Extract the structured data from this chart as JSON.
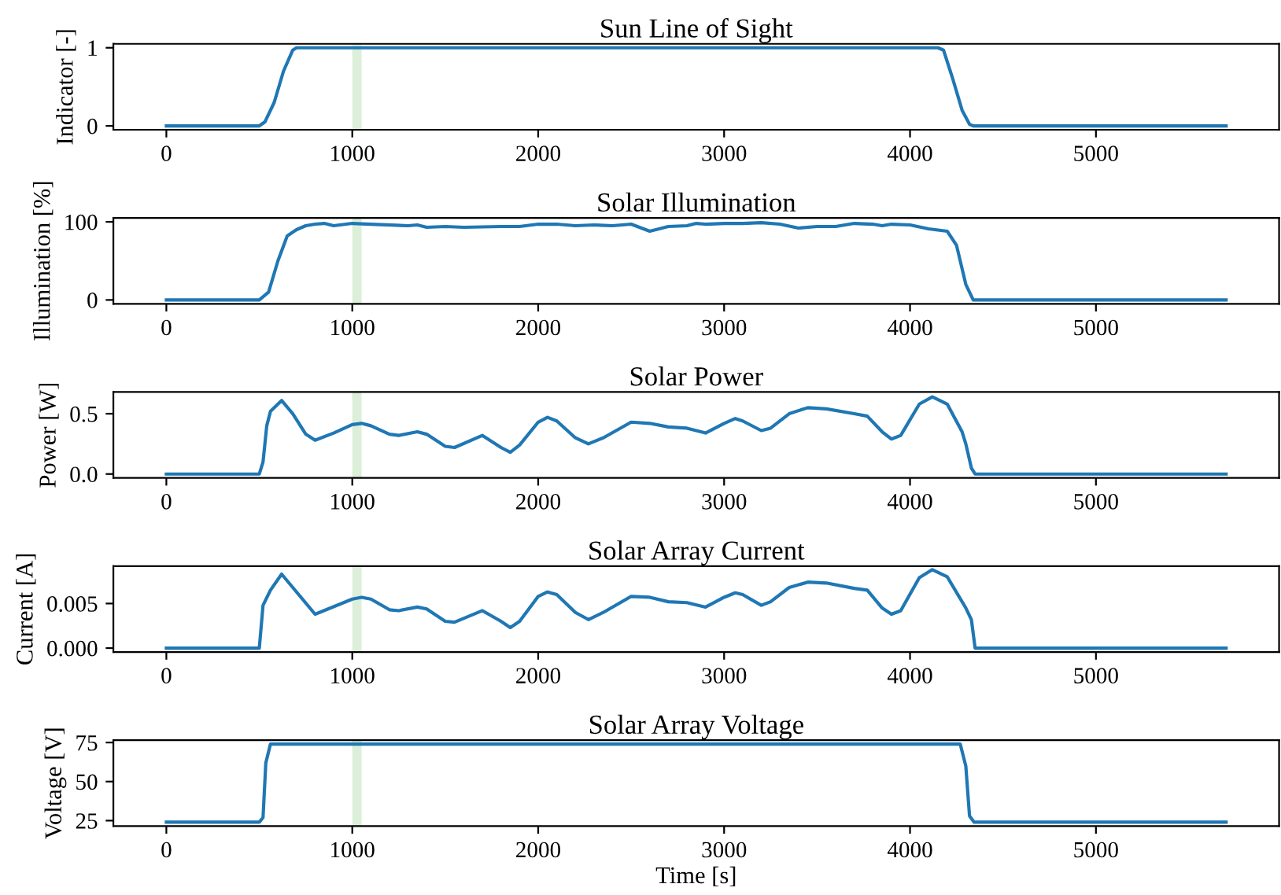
{
  "chart_data": [
    {
      "type": "line",
      "title": "Sun Line of Sight",
      "ylabel": "Indicator [-]",
      "xlim": [
        -285,
        5985
      ],
      "xticks": [
        0,
        1000,
        2000,
        3000,
        4000,
        5000
      ],
      "ylim": [
        -0.05,
        1.05
      ],
      "yticks": [
        0,
        1
      ],
      "grid": false,
      "bands": [
        {
          "axis": "x",
          "from": 1000,
          "to": 1050,
          "color": "#dcefd9"
        }
      ],
      "series": [
        {
          "color": "#1f77b4",
          "x": [
            0,
            500,
            530,
            580,
            630,
            680,
            700,
            4150,
            4180,
            4230,
            4280,
            4320,
            4340,
            5700
          ],
          "values": [
            0,
            0,
            0.05,
            0.3,
            0.7,
            0.97,
            1,
            1,
            0.97,
            0.6,
            0.2,
            0.02,
            0,
            0
          ]
        }
      ]
    },
    {
      "type": "line",
      "title": "Solar Illumination",
      "ylabel": "Illumination [%]",
      "xlim": [
        -285,
        5985
      ],
      "xticks": [
        0,
        1000,
        2000,
        3000,
        4000,
        5000
      ],
      "ylim": [
        -5,
        105
      ],
      "yticks": [
        0,
        100
      ],
      "grid": false,
      "bands": [
        {
          "axis": "x",
          "from": 1000,
          "to": 1050,
          "color": "#dcefd9"
        }
      ],
      "series": [
        {
          "color": "#1f77b4",
          "x": [
            0,
            500,
            550,
            600,
            650,
            700,
            750,
            800,
            850,
            900,
            1000,
            1100,
            1300,
            1350,
            1400,
            1500,
            1600,
            1800,
            1900,
            2000,
            2100,
            2200,
            2300,
            2400,
            2500,
            2600,
            2700,
            2800,
            2850,
            2900,
            3000,
            3100,
            3200,
            3300,
            3400,
            3500,
            3600,
            3700,
            3800,
            3850,
            3900,
            4000,
            4100,
            4200,
            4250,
            4300,
            4340,
            5700
          ],
          "values": [
            0,
            0,
            10,
            50,
            82,
            90,
            95,
            97,
            98,
            95,
            98,
            97,
            95,
            96,
            93,
            94,
            93,
            94,
            94,
            97,
            97,
            95,
            96,
            95,
            97,
            88,
            94,
            95,
            98,
            97,
            98,
            98,
            99,
            97,
            92,
            94,
            94,
            98,
            97,
            95,
            97,
            96,
            91,
            88,
            70,
            20,
            0,
            0
          ]
        }
      ]
    },
    {
      "type": "line",
      "title": "Solar Power",
      "ylabel": "Power [W]",
      "xlim": [
        -285,
        5985
      ],
      "xticks": [
        0,
        1000,
        2000,
        3000,
        4000,
        5000
      ],
      "ylim": [
        -0.0325,
        0.68
      ],
      "yticks": [
        {
          "value": 0,
          "label": "0.0"
        },
        {
          "value": 0.5,
          "label": "0.5"
        }
      ],
      "grid": false,
      "bands": [
        {
          "axis": "x",
          "from": 1000,
          "to": 1050,
          "color": "#dcefd9"
        }
      ],
      "series": [
        {
          "color": "#1f77b4",
          "x": [
            0,
            500,
            520,
            540,
            560,
            620,
            680,
            750,
            800,
            900,
            1000,
            1050,
            1100,
            1200,
            1250,
            1350,
            1400,
            1500,
            1550,
            1700,
            1800,
            1850,
            1900,
            2000,
            2050,
            2100,
            2200,
            2270,
            2350,
            2500,
            2600,
            2700,
            2800,
            2900,
            3000,
            3060,
            3100,
            3200,
            3250,
            3350,
            3450,
            3550,
            3700,
            3770,
            3850,
            3900,
            3950,
            4050,
            4120,
            4200,
            4280,
            4300,
            4330,
            4350,
            5700
          ],
          "values": [
            0,
            0,
            0.1,
            0.4,
            0.52,
            0.61,
            0.5,
            0.33,
            0.28,
            0.34,
            0.41,
            0.42,
            0.4,
            0.33,
            0.32,
            0.35,
            0.33,
            0.23,
            0.22,
            0.32,
            0.22,
            0.18,
            0.24,
            0.43,
            0.47,
            0.44,
            0.3,
            0.25,
            0.3,
            0.43,
            0.42,
            0.39,
            0.38,
            0.34,
            0.42,
            0.46,
            0.44,
            0.36,
            0.38,
            0.5,
            0.55,
            0.54,
            0.5,
            0.48,
            0.35,
            0.29,
            0.32,
            0.58,
            0.64,
            0.58,
            0.35,
            0.25,
            0.05,
            0,
            0
          ]
        }
      ]
    },
    {
      "type": "line",
      "title": "Solar Array Current",
      "ylabel": "Current [A]",
      "xlim": [
        -285,
        5985
      ],
      "xticks": [
        0,
        1000,
        2000,
        3000,
        4000,
        5000
      ],
      "ylim": [
        -0.00044,
        0.0092
      ],
      "yticks": [
        {
          "value": 0,
          "label": "0.000"
        },
        {
          "value": 0.005,
          "label": "0.005"
        }
      ],
      "grid": false,
      "bands": [
        {
          "axis": "x",
          "from": 1000,
          "to": 1050,
          "color": "#dcefd9"
        }
      ],
      "series": [
        {
          "color": "#1f77b4",
          "x": [
            0,
            500,
            520,
            560,
            620,
            680,
            800,
            1000,
            1050,
            1100,
            1200,
            1250,
            1350,
            1400,
            1500,
            1550,
            1700,
            1800,
            1850,
            1900,
            2000,
            2050,
            2100,
            2200,
            2270,
            2350,
            2500,
            2600,
            2700,
            2800,
            2900,
            3000,
            3060,
            3100,
            3200,
            3250,
            3350,
            3450,
            3550,
            3700,
            3770,
            3850,
            3900,
            3950,
            4050,
            4120,
            4200,
            4300,
            4330,
            4350,
            5700
          ],
          "values": [
            0,
            0,
            0.0048,
            0.0065,
            0.0083,
            0.0068,
            0.0038,
            0.0055,
            0.0057,
            0.0055,
            0.0043,
            0.0042,
            0.0046,
            0.0044,
            0.003,
            0.0029,
            0.0042,
            0.003,
            0.0023,
            0.003,
            0.0058,
            0.0063,
            0.006,
            0.004,
            0.0032,
            0.004,
            0.0058,
            0.0057,
            0.0052,
            0.0051,
            0.0046,
            0.0057,
            0.0062,
            0.006,
            0.0048,
            0.0052,
            0.0068,
            0.0074,
            0.0073,
            0.0067,
            0.0065,
            0.0045,
            0.0038,
            0.0042,
            0.0079,
            0.0088,
            0.008,
            0.0045,
            0.0032,
            0,
            0
          ]
        }
      ]
    },
    {
      "type": "line",
      "title": "Solar Array Voltage",
      "xlabel": "Time [s]",
      "ylabel": "Voltage [V]",
      "xlim": [
        -285,
        5985
      ],
      "xticks": [
        0,
        1000,
        2000,
        3000,
        4000,
        5000
      ],
      "ylim": [
        21.5,
        76.5
      ],
      "yticks": [
        25,
        50,
        75
      ],
      "grid": false,
      "bands": [
        {
          "axis": "x",
          "from": 1000,
          "to": 1050,
          "color": "#dcefd9"
        }
      ],
      "series": [
        {
          "color": "#1f77b4",
          "x": [
            0,
            500,
            520,
            535,
            560,
            4270,
            4300,
            4320,
            4345,
            5700
          ],
          "values": [
            24,
            24,
            27,
            62,
            74,
            74,
            60,
            28,
            24,
            24
          ]
        }
      ]
    }
  ]
}
